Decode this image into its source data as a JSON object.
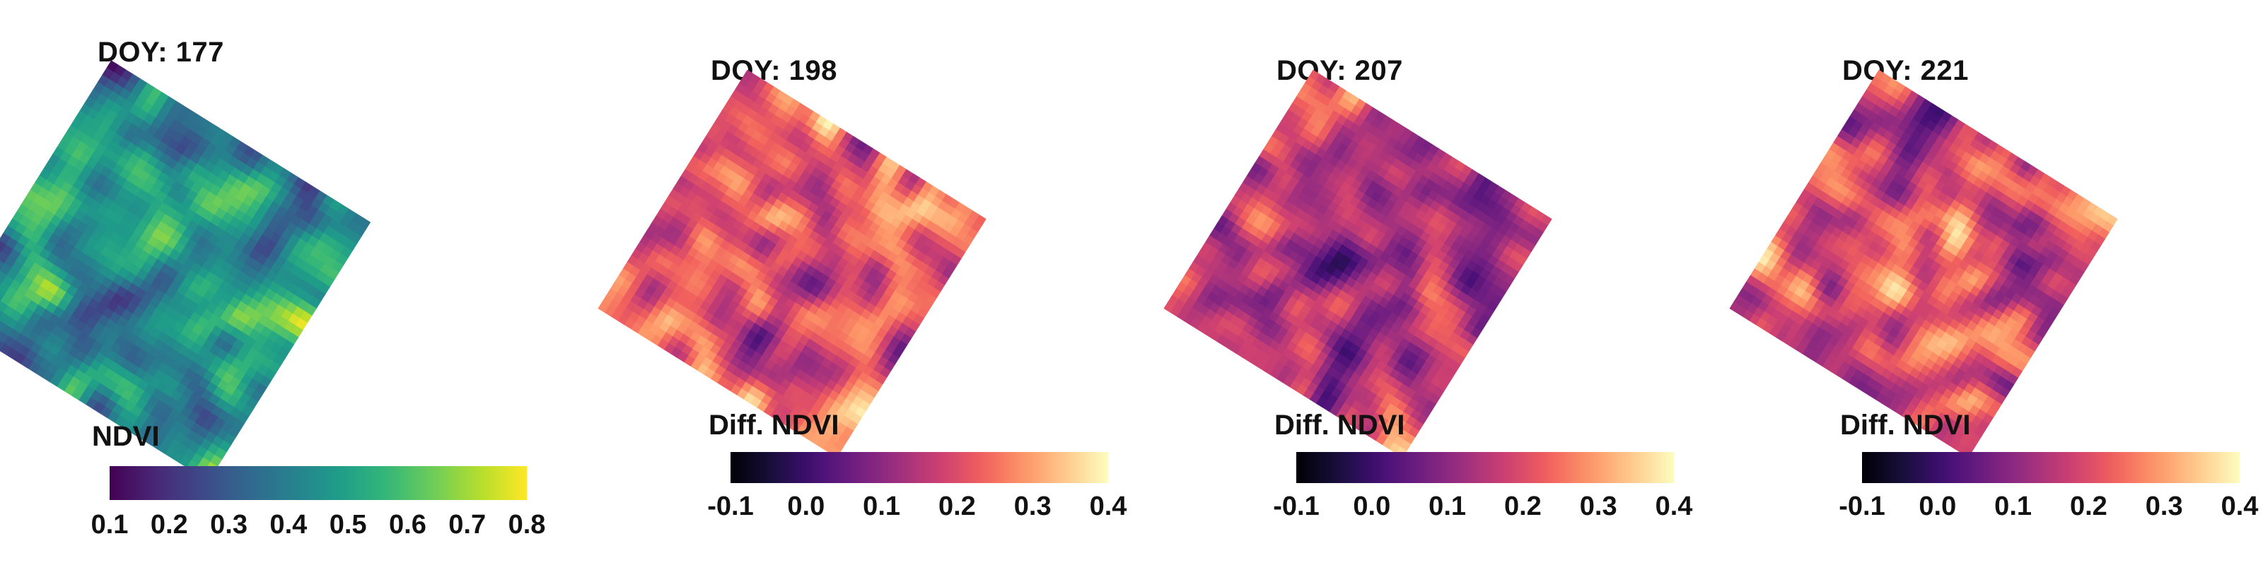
{
  "chart_data": [
    {
      "type": "heatmap",
      "title": "DOY: 177",
      "legend_title": "NDVI",
      "colormap": "viridis",
      "color_range": [
        0.1,
        0.8
      ],
      "ticks": [
        "0.1",
        "0.2",
        "0.3",
        "0.4",
        "0.5",
        "0.6",
        "0.7",
        "0.8"
      ],
      "tick_values": [
        0.1,
        0.2,
        0.3,
        0.4,
        0.5,
        0.6,
        0.7,
        0.8
      ],
      "value_stats": {
        "mean": 0.42,
        "min": 0.12,
        "max": 0.78
      }
    },
    {
      "type": "heatmap",
      "title": "DOY: 198",
      "legend_title": "Diff. NDVI",
      "colormap": "magma",
      "color_range": [
        -0.1,
        0.4
      ],
      "ticks": [
        "-0.1",
        "0.0",
        "0.1",
        "0.2",
        "0.3",
        "0.4"
      ],
      "tick_values": [
        -0.1,
        0.0,
        0.1,
        0.2,
        0.3,
        0.4
      ],
      "value_stats": {
        "mean": 0.2,
        "min": 0.02,
        "max": 0.39
      }
    },
    {
      "type": "heatmap",
      "title": "DOY: 207",
      "legend_title": "Diff. NDVI",
      "colormap": "magma",
      "color_range": [
        -0.1,
        0.4
      ],
      "ticks": [
        "-0.1",
        "0.0",
        "0.1",
        "0.2",
        "0.3",
        "0.4"
      ],
      "tick_values": [
        -0.1,
        0.0,
        0.1,
        0.2,
        0.3,
        0.4
      ],
      "value_stats": {
        "mean": 0.15,
        "min": -0.02,
        "max": 0.36
      }
    },
    {
      "type": "heatmap",
      "title": "DOY: 221",
      "legend_title": "Diff. NDVI",
      "colormap": "magma",
      "color_range": [
        -0.1,
        0.4
      ],
      "ticks": [
        "-0.1",
        "0.0",
        "0.1",
        "0.2",
        "0.3",
        "0.4"
      ],
      "tick_values": [
        -0.1,
        0.0,
        0.1,
        0.2,
        0.3,
        0.4
      ],
      "value_stats": {
        "mean": 0.18,
        "min": 0.0,
        "max": 0.38
      }
    }
  ]
}
